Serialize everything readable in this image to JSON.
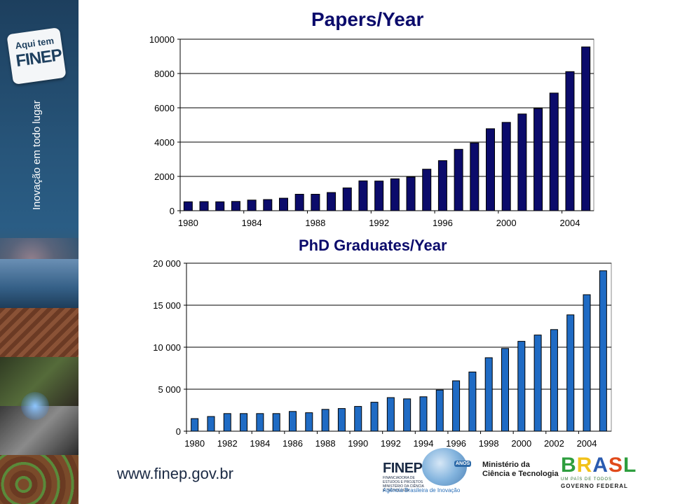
{
  "sidebar": {
    "badge_line1": "Aqui tem",
    "badge_line2": "FINEP",
    "tagline": "Inovação em todo lugar"
  },
  "footer": {
    "url": "www.finep.gov.br",
    "finep_name": "FINEP",
    "finep_small": "FINANCIADORA DE ESTUDOS E PROJETOS MINISTÉRIO DA CIÊNCIA E TECNOLOGIA",
    "finep_agency": "Agência Brasileira de Inovação",
    "anos_badge": "ANOS",
    "mct_line1": "Ministério da",
    "mct_line2": "Ciência e Tecnologia",
    "brasil_letters": [
      "B",
      "R",
      "A",
      "S",
      "L"
    ],
    "brasil_sub1": "UM PAÍS DE TODOS",
    "brasil_sub2": "GOVERNO FEDERAL"
  },
  "colors": {
    "papers_bar": "#0b0b6b",
    "phd_bar": "#1f6bc4",
    "title": "#0b0b6b"
  },
  "chart_data": [
    {
      "type": "bar",
      "title": "Papers/Year",
      "xlabel": "",
      "ylabel": "",
      "ylim": [
        0,
        10000
      ],
      "yticks": [
        "0",
        "2000",
        "4000",
        "6000",
        "8000",
        "10000"
      ],
      "xtick_labels": [
        "1980",
        "1984",
        "1988",
        "1992",
        "1996",
        "2000",
        "2004"
      ],
      "grid": true,
      "categories": [
        1980,
        1981,
        1982,
        1983,
        1984,
        1985,
        1986,
        1987,
        1988,
        1989,
        1990,
        1991,
        1992,
        1993,
        1994,
        1995,
        1996,
        1997,
        1998,
        1999,
        2000,
        2001,
        2002,
        2003,
        2004,
        2005
      ],
      "values": [
        520,
        530,
        520,
        540,
        620,
        650,
        730,
        960,
        960,
        1060,
        1330,
        1740,
        1730,
        1860,
        1960,
        2420,
        2920,
        3580,
        3950,
        4780,
        5150,
        5640,
        5960,
        6860,
        8110,
        9550
      ]
    },
    {
      "type": "bar",
      "title": "PhD Graduates/Year",
      "xlabel": "",
      "ylabel": "",
      "ylim": [
        0,
        20000
      ],
      "yticks": [
        "0",
        "5 000",
        "10 000",
        "15 000",
        "20 000"
      ],
      "xtick_labels": [
        "1980",
        "1982",
        "1984",
        "1986",
        "1988",
        "1990",
        "1992",
        "1994",
        "1996",
        "1998",
        "2000",
        "2002",
        "2004"
      ],
      "grid": true,
      "categories": [
        1980,
        1981,
        1982,
        1983,
        1984,
        1985,
        1986,
        1987,
        1988,
        1989,
        1990,
        1991,
        1992,
        1993,
        1994,
        1995,
        1996,
        1997,
        1998,
        1999,
        2000,
        2001,
        2002,
        2003,
        2004,
        2005
      ],
      "values": [
        1500,
        1750,
        2100,
        2100,
        2100,
        2100,
        2350,
        2200,
        2600,
        2700,
        2950,
        3450,
        4000,
        3850,
        4100,
        4900,
        6000,
        7050,
        8750,
        9850,
        10700,
        11450,
        12100,
        13850,
        16250,
        19100
      ]
    }
  ]
}
